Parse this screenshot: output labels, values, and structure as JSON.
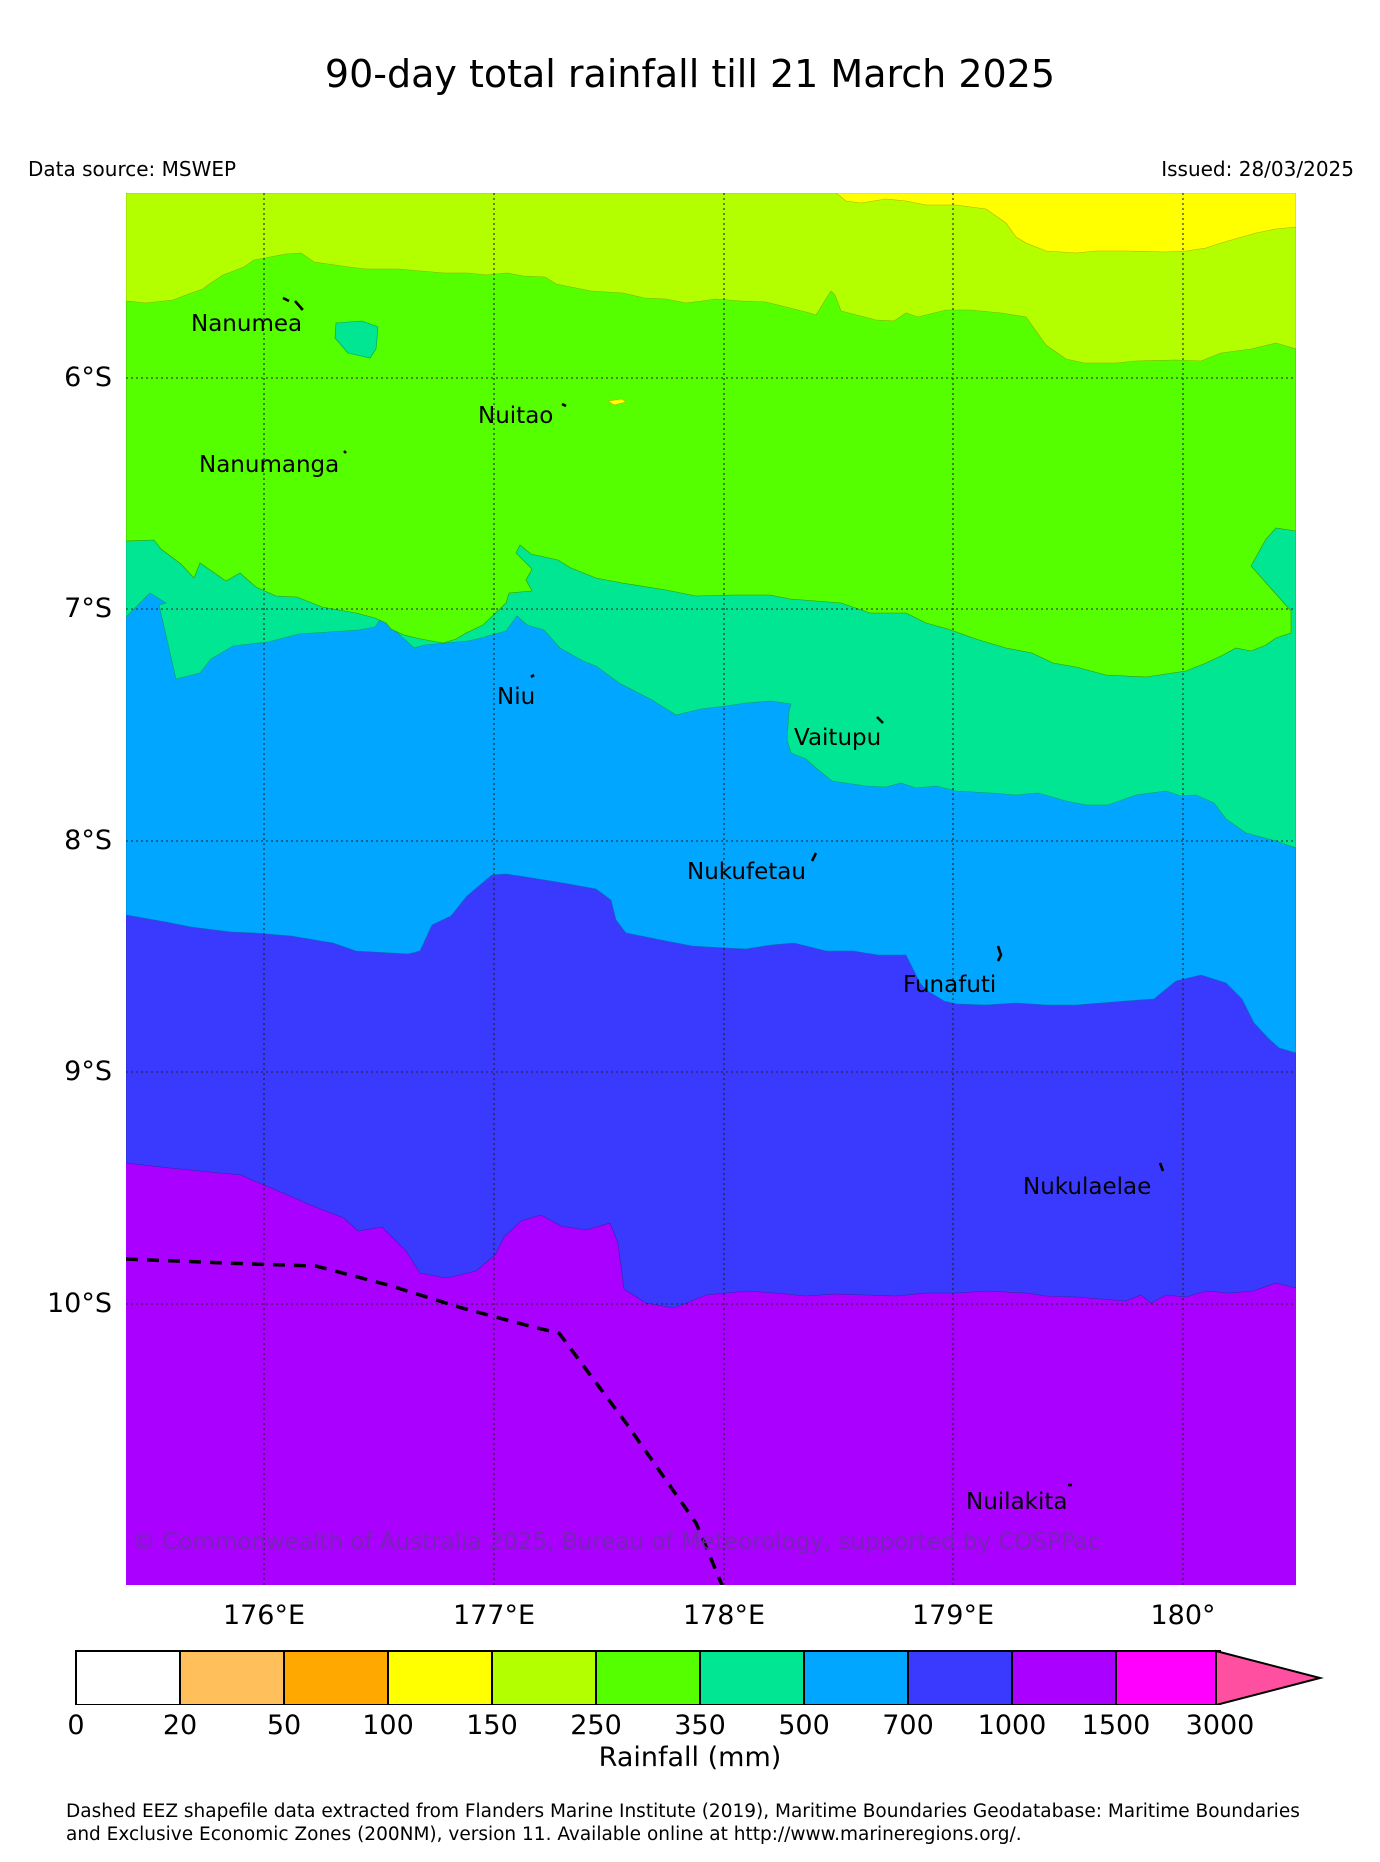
{
  "title": "90-day total rainfall till 21 March 2025",
  "data_source": "Data source: MSWEP",
  "issued": "Issued: 28/03/2025",
  "copyright": "© Commonwealth of Australia 2025, Bureau of Meteorology, supported by COSPPac",
  "lat_labels": [
    "6°S",
    "7°S",
    "8°S",
    "9°S",
    "10°S"
  ],
  "lon_labels": [
    "176°E",
    "177°E",
    "178°E",
    "179°E",
    "180°"
  ],
  "map_extent": {
    "lon_min": 175.4,
    "lon_max": 180.5,
    "lat_north": -5.2,
    "lat_south": -11.2
  },
  "islands": [
    "Nanumea",
    "Nuitao",
    "Nanumanga",
    "Niu",
    "Vaitupu",
    "Nukufetau",
    "Funafuti",
    "Nukulaelae",
    "Nuilakita"
  ],
  "colorbar": {
    "title": "Rainfall (mm)",
    "ticks": [
      "0",
      "20",
      "50",
      "100",
      "150",
      "250",
      "350",
      "500",
      "700",
      "1000",
      "1500",
      "3000"
    ],
    "colors": [
      "#ffffff",
      "#ffbf5a",
      "#ffa800",
      "#ffff00",
      "#b3ff00",
      "#55ff00",
      "#00e693",
      "#00a6ff",
      "#3a3aff",
      "#aa00ff",
      "#ff00ff",
      "#ff4fa0"
    ],
    "extend": "max"
  },
  "rainfall_bands_mm": [
    {
      "range": "100-150",
      "color": "#ffff00"
    },
    {
      "range": "150-250",
      "color": "#b3ff00"
    },
    {
      "range": "250-350",
      "color": "#55ff00"
    },
    {
      "range": "350-500",
      "color": "#00e693"
    },
    {
      "range": "500-700",
      "color": "#00a6ff"
    },
    {
      "range": "700-1000",
      "color": "#3a3aff"
    },
    {
      "range": "1000-1500",
      "color": "#aa00ff"
    }
  ],
  "footer": {
    "line1": "Dashed EEZ shapefile data extracted from Flanders Marine Institute (2019), Maritime Boundaries Geodatabase: Maritime Boundaries",
    "line2": "and Exclusive Economic Zones (200NM), version 11. Available online at http://www.marineregions.org/."
  }
}
